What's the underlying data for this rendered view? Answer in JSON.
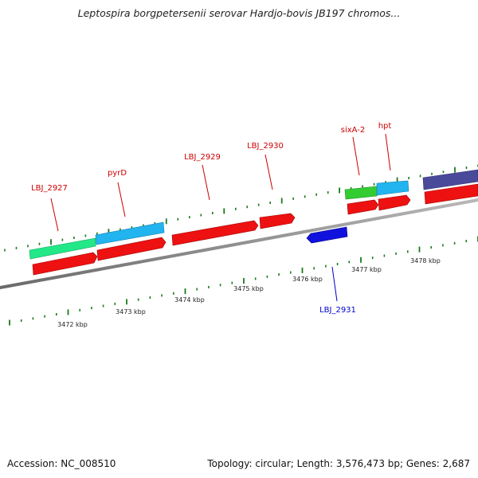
{
  "title": "Leptospira borgpetersenii serovar Hardjo-bovis JB197 chromos...",
  "footer": {
    "accession": "Accession: NC_008510",
    "summary": "Topology: circular; Length: 3,576,473 bp; Genes: 2,687"
  },
  "colors": {
    "backbone": "#8c8c8c",
    "tick": "#1a7a1a",
    "cds_forward": "#ee1111",
    "cds_reverse": "#1111dd",
    "label_forward": "#cc0000",
    "label_reverse": "#0000cc",
    "feature_green": "#22e888",
    "feature_cyan": "#22b4ee",
    "feature_lime": "#33cc33",
    "feature_purple": "#4a4a9a"
  },
  "scale": {
    "labels": [
      "3472 kbp",
      "3473 kbp",
      "3474 kbp",
      "3475 kbp",
      "3476 kbp",
      "3477 kbp",
      "3478 kbp"
    ]
  },
  "genes": [
    {
      "name": "LBJ_2927",
      "strand": "forward"
    },
    {
      "name": "pyrD",
      "strand": "forward"
    },
    {
      "name": "LBJ_2929",
      "strand": "forward"
    },
    {
      "name": "LBJ_2930",
      "strand": "forward"
    },
    {
      "name": "sixA-2",
      "strand": "forward"
    },
    {
      "name": "hpt",
      "strand": "forward"
    },
    {
      "name": "LBJ_2931",
      "strand": "reverse"
    }
  ]
}
